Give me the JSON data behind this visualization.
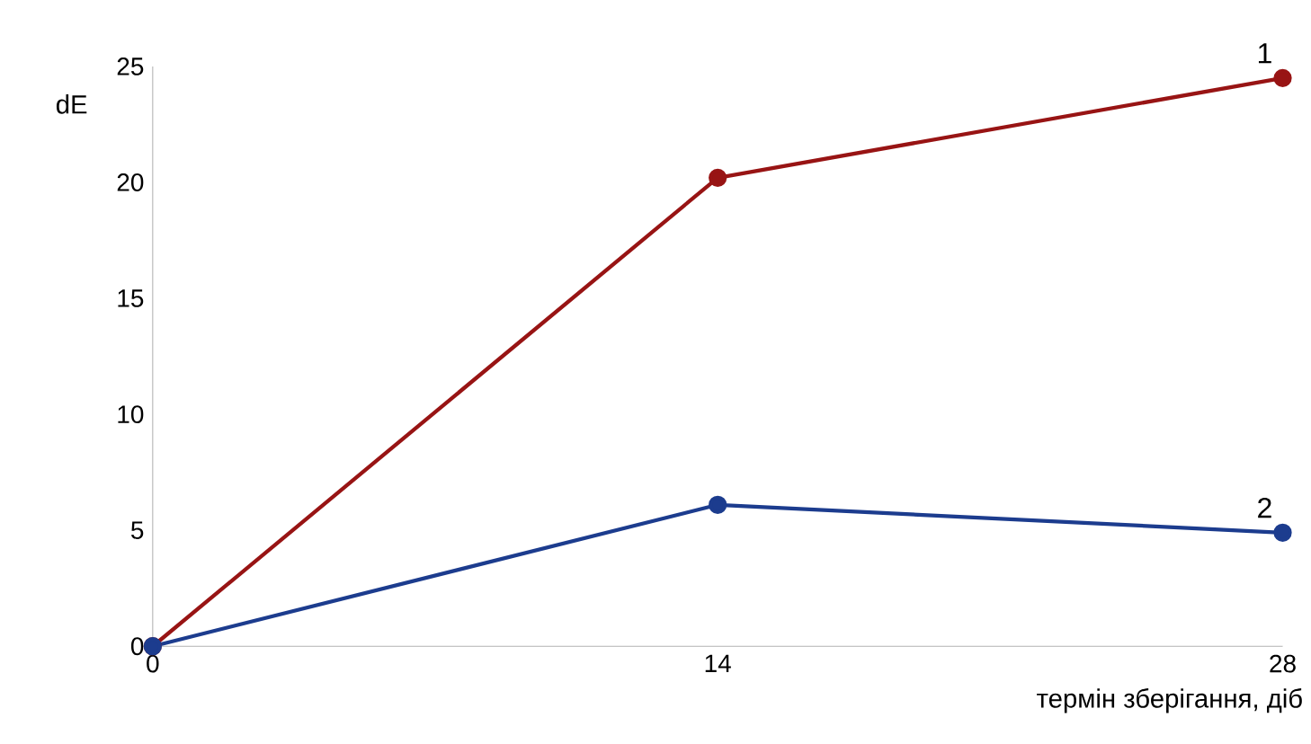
{
  "chart_data": {
    "type": "line",
    "xlabel": "термін зберігання, діб",
    "ylabel": "dE",
    "x": [
      0,
      14,
      28
    ],
    "xlim": [
      0,
      28
    ],
    "xticks": [
      0,
      14,
      28
    ],
    "ylim": [
      0,
      25
    ],
    "yticks": [
      0,
      5,
      10,
      15,
      20,
      25
    ],
    "marker": "circle",
    "grid": false,
    "legend": false,
    "series": [
      {
        "name": "1",
        "color": "#981414",
        "values": [
          0,
          20.2,
          24.5
        ]
      },
      {
        "name": "2",
        "color": "#1c3c8e",
        "values": [
          0,
          6.1,
          4.9
        ]
      }
    ]
  }
}
